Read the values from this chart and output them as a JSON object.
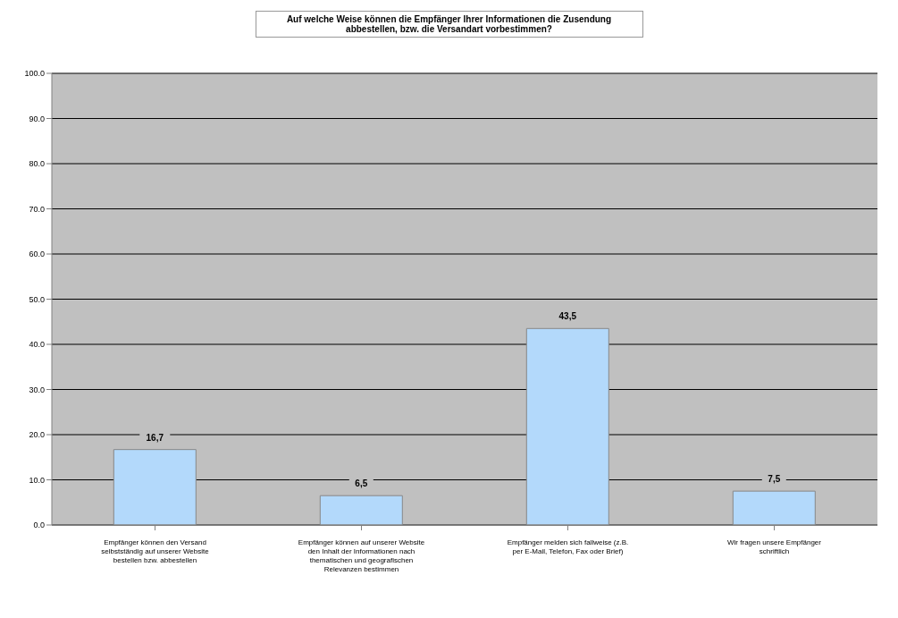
{
  "chart_data": {
    "type": "bar",
    "title": "Auf welche Weise können die Empfänger Ihrer Informationen die Zusendung abbestellen, bzw. die Versandart vorbestimmen?",
    "categories": [
      "Empfänger können den Versand selbstständig auf unserer Website bestellen bzw. abbestellen",
      "Empfänger können auf unserer Website den Inhalt der Informationen nach thematischen und geografischen Relevanzen bestimmen",
      "Empfänger melden sich fallweise (z.B. per E-Mail, Telefon, Fax oder Brief)",
      "Wir fragen unsere Empfänger schriftlich"
    ],
    "values": [
      16.7,
      6.5,
      43.5,
      7.5
    ],
    "value_labels": [
      "16,7",
      "6,5",
      "43,5",
      "7,5"
    ],
    "color": "#b3d9fb",
    "ylim": [
      0,
      100
    ],
    "yticks": [
      {
        "value": 0,
        "label": "0.0"
      },
      {
        "value": 10,
        "label": "10.0"
      },
      {
        "value": 20,
        "label": "20.0"
      },
      {
        "value": 30,
        "label": "30.0"
      },
      {
        "value": 40,
        "label": "40.0"
      },
      {
        "value": 50,
        "label": "50.0"
      },
      {
        "value": 60,
        "label": "60.0"
      },
      {
        "value": 70,
        "label": "70.0"
      },
      {
        "value": 80,
        "label": "80.0"
      },
      {
        "value": 90,
        "label": "90.0"
      },
      {
        "value": 100,
        "label": "100.0"
      }
    ],
    "grid": "y",
    "legend": false
  }
}
